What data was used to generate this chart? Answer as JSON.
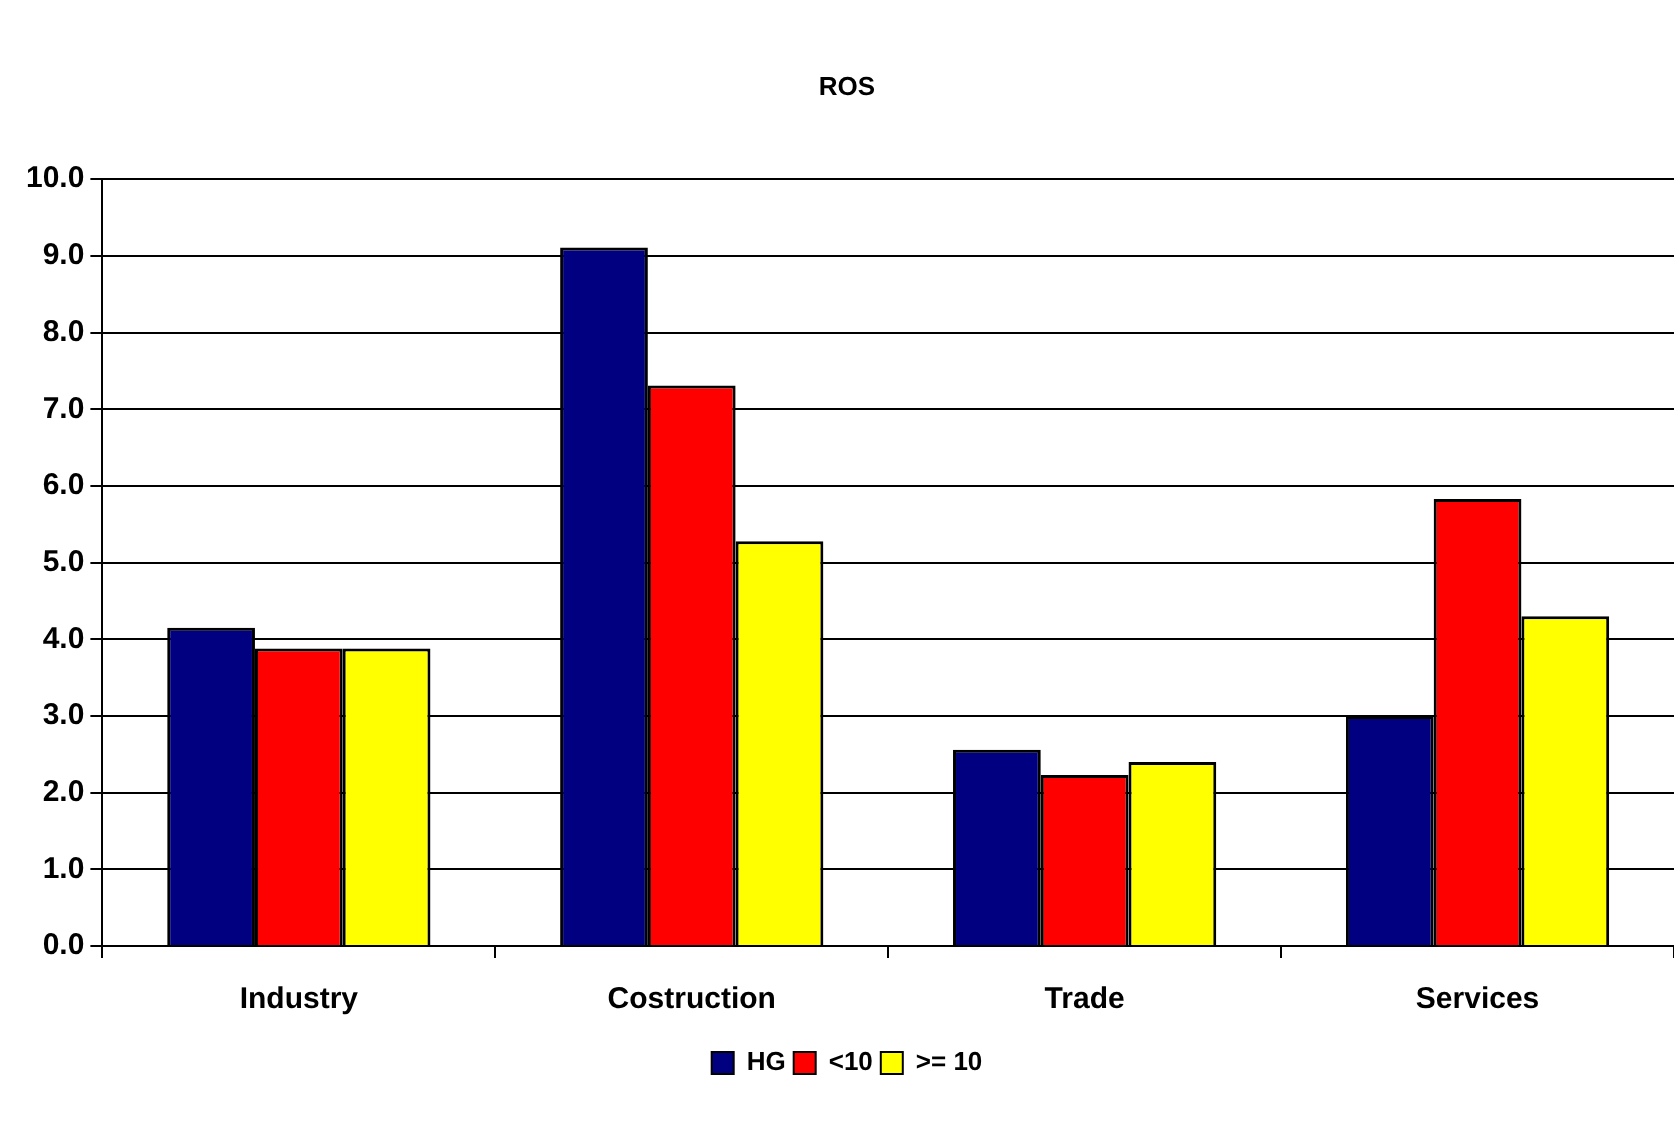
{
  "chart_data": {
    "type": "bar",
    "title": "ROS",
    "categories": [
      "Industry",
      "Costruction",
      "Trade",
      "Services"
    ],
    "series": [
      {
        "name": "HG",
        "color": "#000080",
        "values": [
          4.15,
          9.11,
          2.56,
          3.0
        ]
      },
      {
        "name": "<10",
        "color": "#ff0000",
        "values": [
          3.88,
          7.31,
          2.23,
          5.83
        ]
      },
      {
        "name": ">= 10",
        "color": "#ffff00",
        "values": [
          3.88,
          5.28,
          2.4,
          4.3
        ]
      }
    ],
    "ylim": [
      0,
      10
    ],
    "yticks": [
      {
        "value": 0,
        "label": "0.0"
      },
      {
        "value": 1,
        "label": "1.0"
      },
      {
        "value": 2,
        "label": "2.0"
      },
      {
        "value": 3,
        "label": "3.0"
      },
      {
        "value": 4,
        "label": "4.0"
      },
      {
        "value": 5,
        "label": "5.0"
      },
      {
        "value": 6,
        "label": "6.0"
      },
      {
        "value": 7,
        "label": "7.0"
      },
      {
        "value": 8,
        "label": "8.0"
      },
      {
        "value": 9,
        "label": "9.0"
      },
      {
        "value": 10,
        "label": "10.0"
      }
    ],
    "grid": "y",
    "legend": "bottom"
  }
}
